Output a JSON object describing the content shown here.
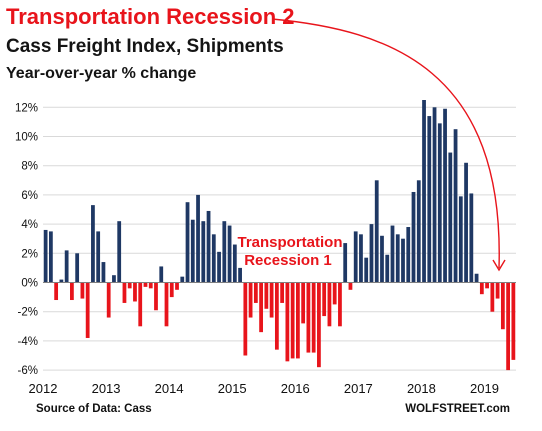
{
  "chart_data": {
    "type": "bar",
    "title": "Transportation  Recession 2",
    "subtitle": "Cass  Freight Index, Shipments",
    "subtitle2": "Year-over-year % change",
    "source": "Source of Data: Cass",
    "brand": "WOLFSTREET.com",
    "annotation_lines": [
      "Transportation",
      "Recession 1"
    ],
    "xlabel": "",
    "ylabel": "",
    "ylim": [
      -6.3,
      12.7
    ],
    "y_ticks": [
      12,
      10,
      8,
      6,
      4,
      2,
      0,
      -2,
      -4,
      -6
    ],
    "y_tick_labels": [
      "12%",
      "10%",
      "8%",
      "6%",
      "4%",
      "2%",
      "0%",
      "-2%",
      "-4%",
      "-6%"
    ],
    "x_ticks": [
      "2012",
      "2013",
      "2014",
      "2015",
      "2016",
      "2017",
      "2018",
      "2019"
    ],
    "start_period": "2012-01",
    "grid": true,
    "legend": "none",
    "colors": {
      "positive": "#1f3864",
      "negative": "#e8141b",
      "title": "#e8141b",
      "grid": "#d9d9d9"
    },
    "values": [
      3.6,
      3.5,
      -1.2,
      0.2,
      2.2,
      -1.2,
      2.0,
      -1.1,
      -3.8,
      5.3,
      3.5,
      1.4,
      -2.4,
      0.5,
      4.2,
      -1.4,
      -0.4,
      -1.3,
      -3.0,
      -0.3,
      -0.4,
      -1.9,
      1.1,
      -3.0,
      -1.0,
      -0.5,
      0.4,
      5.5,
      4.3,
      6.0,
      4.2,
      4.9,
      3.3,
      2.1,
      4.2,
      3.9,
      2.6,
      1.0,
      -5.0,
      -2.4,
      -1.4,
      -3.4,
      -1.8,
      -2.4,
      -4.6,
      -1.4,
      -5.4,
      -5.2,
      -5.2,
      -2.8,
      -4.8,
      -4.8,
      -5.8,
      -2.3,
      -3.0,
      -1.5,
      -3.0,
      2.7,
      -0.5,
      3.5,
      3.3,
      1.7,
      4.0,
      7.0,
      3.2,
      1.9,
      3.9,
      3.3,
      3.0,
      3.8,
      6.2,
      7.0,
      12.5,
      11.4,
      12.0,
      10.9,
      11.9,
      8.9,
      10.5,
      5.9,
      8.2,
      6.1,
      0.6,
      -0.8,
      -0.4,
      -2.0,
      -1.1,
      -3.2,
      -6.0,
      -5.3
    ]
  }
}
